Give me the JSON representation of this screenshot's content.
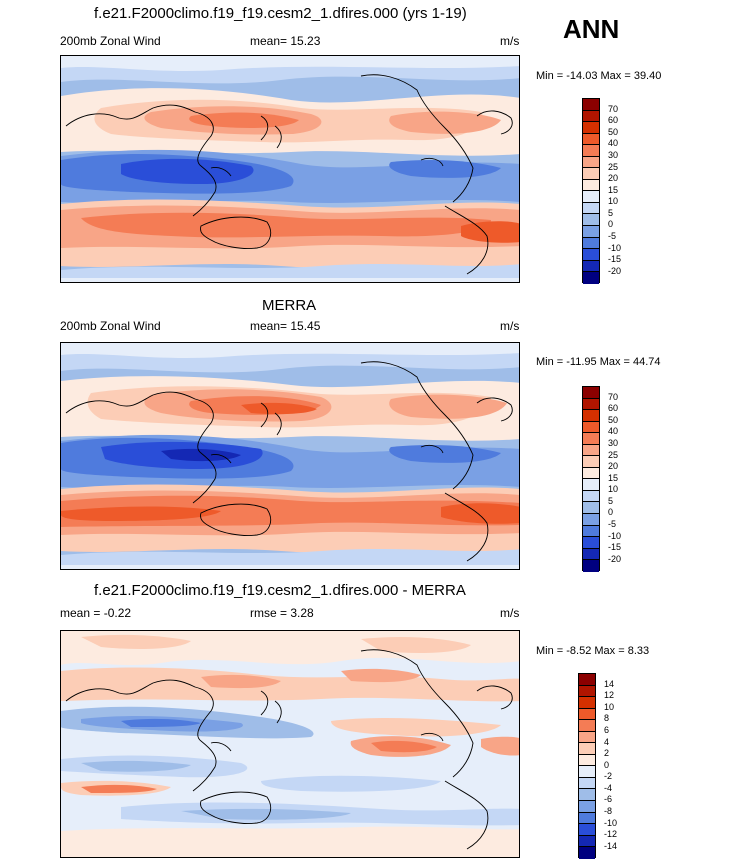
{
  "header": {
    "season": "ANN"
  },
  "panels": [
    {
      "title": "f.e21.F2000climo.f19_f19.cesm2_1.dfires.000 (yrs 1-19)",
      "left_label": "200mb Zonal Wind",
      "center_label": "mean=  15.23",
      "right_label": "m/s",
      "minmax": "Min = -14.03 Max =  39.40",
      "levels": [
        "70",
        "60",
        "50",
        "40",
        "30",
        "25",
        "20",
        "15",
        "10",
        "5",
        "0",
        "-5",
        "-10",
        "-15",
        "-20"
      ],
      "colors": [
        "#8b0000",
        "#b01500",
        "#d43000",
        "#ee5a2a",
        "#f47c55",
        "#f8a587",
        "#fccdb6",
        "#fdebe0",
        "#e6eefa",
        "#c4d7f5",
        "#9fbde8",
        "#7aa0e4",
        "#4f7bdd",
        "#2a4ed8",
        "#1428b4",
        "#000080"
      ]
    },
    {
      "title": "MERRA",
      "left_label": "200mb Zonal Wind",
      "center_label": "mean=  15.45",
      "right_label": "m/s",
      "minmax": "Min = -11.95 Max =  44.74",
      "levels": [
        "70",
        "60",
        "50",
        "40",
        "30",
        "25",
        "20",
        "15",
        "10",
        "5",
        "0",
        "-5",
        "-10",
        "-15",
        "-20"
      ],
      "colors": [
        "#8b0000",
        "#b01500",
        "#d43000",
        "#ee5a2a",
        "#f47c55",
        "#f8a587",
        "#fccdb6",
        "#fdebe0",
        "#e6eefa",
        "#c4d7f5",
        "#9fbde8",
        "#7aa0e4",
        "#4f7bdd",
        "#2a4ed8",
        "#1428b4",
        "#000080"
      ]
    },
    {
      "title": "f.e21.F2000climo.f19_f19.cesm2_1.dfires.000 - MERRA",
      "left_label": "mean = -0.22",
      "center_label": "rmse =   3.28",
      "right_label": "m/s",
      "minmax": "Min = -8.52 Max =  8.33",
      "levels": [
        "14",
        "12",
        "10",
        "8",
        "6",
        "4",
        "2",
        "0",
        "-2",
        "-4",
        "-6",
        "-8",
        "-10",
        "-12",
        "-14"
      ],
      "colors": [
        "#8b0000",
        "#b01500",
        "#d43000",
        "#ee5a2a",
        "#f47c55",
        "#f8a587",
        "#fccdb6",
        "#fdebe0",
        "#e6eefa",
        "#c4d7f5",
        "#9fbde8",
        "#7aa0e4",
        "#4f7bdd",
        "#2a4ed8",
        "#1428b4",
        "#000080"
      ]
    }
  ]
}
